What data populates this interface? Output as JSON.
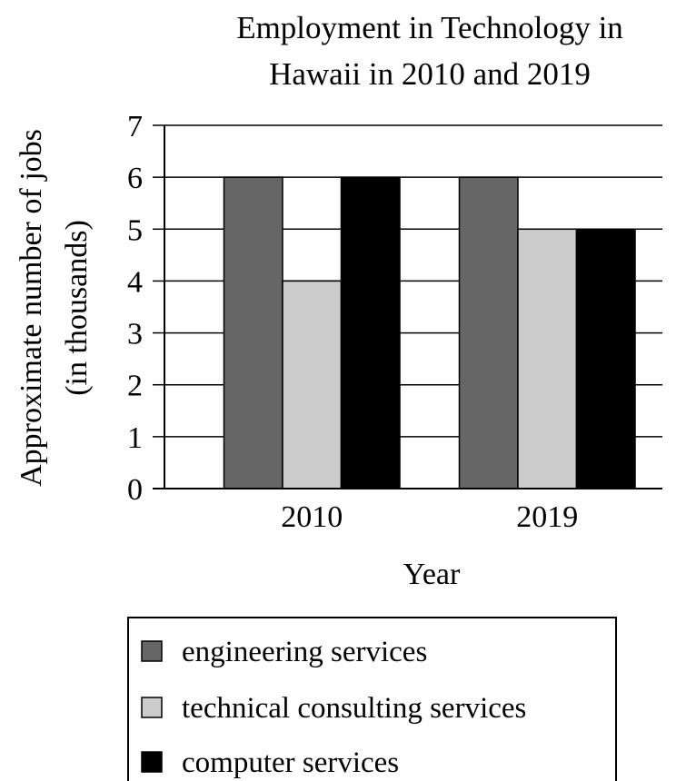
{
  "chart_data": {
    "type": "bar",
    "title_lines": [
      "Employment in Technology in",
      "Hawaii in 2010 and 2019"
    ],
    "xlabel": "Year",
    "ylabel_lines": [
      "Approximate number of jobs",
      "(in thousands)"
    ],
    "categories": [
      "2010",
      "2019"
    ],
    "ylim": [
      0,
      7
    ],
    "yticks": [
      "0",
      "1",
      "2",
      "3",
      "4",
      "5",
      "6",
      "7"
    ],
    "grid": true,
    "legend_position": "bottom",
    "series": [
      {
        "name": "engineering services",
        "color": "#666666",
        "values": [
          6,
          6
        ]
      },
      {
        "name": "technical consulting services",
        "color": "#cccccc",
        "values": [
          4,
          5
        ]
      },
      {
        "name": "computer services",
        "color": "#000000",
        "values": [
          6,
          5
        ]
      }
    ]
  }
}
